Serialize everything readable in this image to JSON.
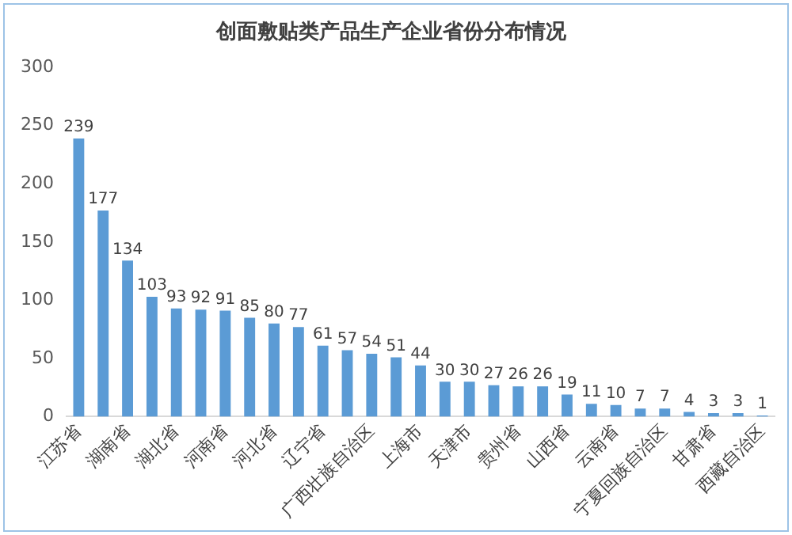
{
  "chart_data": {
    "type": "bar",
    "title": "创面敷贴类产品生产企业省份分布情况",
    "categories": [
      "江苏省",
      null,
      "湖南省",
      null,
      "湖北省",
      null,
      "河南省",
      null,
      "河北省",
      null,
      "辽宁省",
      null,
      "广西壮族自治区",
      null,
      "上海市",
      null,
      "天津市",
      null,
      "贵州省",
      null,
      "山西省",
      null,
      "云南省",
      null,
      "宁夏回族自治区",
      null,
      "甘肃省",
      null,
      "西藏自治区"
    ],
    "values": [
      239,
      177,
      134,
      103,
      93,
      92,
      91,
      85,
      80,
      77,
      61,
      57,
      54,
      51,
      44,
      30,
      30,
      27,
      26,
      26,
      19,
      11,
      10,
      7,
      7,
      4,
      3,
      3,
      1
    ],
    "color": "#5b9bd5",
    "ylim": [
      0,
      300
    ],
    "yticks": [
      0,
      50,
      100,
      150,
      200,
      250,
      300
    ],
    "grid": false,
    "data_labels": true
  }
}
